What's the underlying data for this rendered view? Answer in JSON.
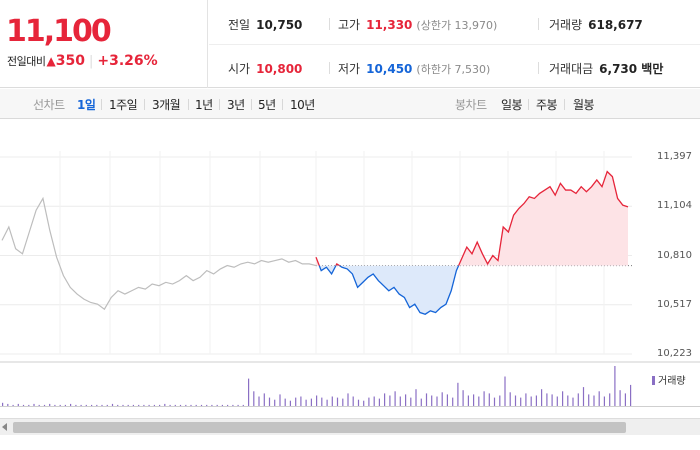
{
  "price": {
    "current": "11,100",
    "change_label": "전일대비",
    "change_amount": "350",
    "change_rate": "+3.26%"
  },
  "info": {
    "prev_close_label": "전일",
    "prev_close": "10,750",
    "high_label": "고가",
    "high": "11,330",
    "upper_limit": "(상한가 13,970)",
    "volume_label": "거래량",
    "volume": "618,677",
    "open_label": "시가",
    "open": "10,800",
    "low_label": "저가",
    "low": "10,450",
    "lower_limit": "(하한가 7,530)",
    "value_label": "거래대금",
    "value": "6,730 백만"
  },
  "tabs": {
    "line_chart_label": "선차트",
    "periods": [
      "1일",
      "1주일",
      "3개월",
      "1년",
      "3년",
      "5년",
      "10년"
    ],
    "candle_chart_label": "봉차트",
    "candle_periods": [
      "일봉",
      "주봉",
      "월봉"
    ]
  },
  "volume_legend": "거래량",
  "colors": {
    "up": "#e6253a",
    "down": "#1565d8",
    "prev": "#bdbdbd",
    "volume": "#8a6fc4"
  },
  "chart_data": {
    "type": "line",
    "y_ticks": [
      "11,397",
      "11,104",
      "10,810",
      "10,517",
      "10,223"
    ],
    "ylim": [
      10223,
      11397
    ],
    "reference_price": 10750,
    "prev_day_series": [
      10900,
      10980,
      10850,
      10820,
      10950,
      11080,
      11150,
      10960,
      10800,
      10690,
      10620,
      10580,
      10550,
      10530,
      10520,
      10490,
      10560,
      10600,
      10580,
      10600,
      10620,
      10610,
      10640,
      10630,
      10650,
      10640,
      10660,
      10690,
      10660,
      10680,
      10720,
      10700,
      10730,
      10750,
      10740,
      10760,
      10770,
      10760,
      10780,
      10770,
      10780,
      10790,
      10770,
      10780,
      10760,
      10760,
      10750
    ],
    "today_series": [
      10800,
      10720,
      10740,
      10700,
      10760,
      10740,
      10730,
      10700,
      10620,
      10650,
      10680,
      10700,
      10660,
      10630,
      10600,
      10620,
      10580,
      10560,
      10500,
      10520,
      10470,
      10460,
      10480,
      10470,
      10500,
      10520,
      10600,
      10720,
      10790,
      10860,
      10820,
      10890,
      10820,
      10760,
      10810,
      10780,
      10980,
      10950,
      11050,
      11090,
      11120,
      11160,
      11150,
      11180,
      11200,
      11220,
      11170,
      11240,
      11200,
      11200,
      11180,
      11220,
      11190,
      11220,
      11260,
      11220,
      11310,
      11280,
      11150,
      11110,
      11100
    ],
    "volume": [
      3,
      2,
      1,
      2,
      1,
      1,
      2,
      1,
      1,
      2,
      1,
      1,
      1,
      2,
      1,
      1,
      1,
      1,
      1,
      1,
      1,
      2,
      1,
      1,
      1,
      1,
      1,
      1,
      1,
      1,
      1,
      2,
      1,
      1,
      1,
      1,
      1,
      1,
      1,
      1,
      1,
      1,
      1,
      1,
      1,
      1,
      1,
      26,
      14,
      9,
      12,
      8,
      6,
      11,
      7,
      5,
      8,
      9,
      6,
      7,
      10,
      8,
      6,
      9,
      8,
      7,
      12,
      9,
      6,
      5,
      8,
      9,
      7,
      12,
      10,
      14,
      9,
      11,
      8,
      16,
      7,
      12,
      10,
      9,
      13,
      11,
      8,
      22,
      15,
      10,
      11,
      9,
      14,
      12,
      8,
      10,
      28,
      13,
      10,
      8,
      12,
      9,
      10,
      16,
      12,
      11,
      9,
      14,
      10,
      8,
      12,
      18,
      11,
      10,
      14,
      9,
      12,
      38,
      15,
      12,
      20
    ]
  }
}
